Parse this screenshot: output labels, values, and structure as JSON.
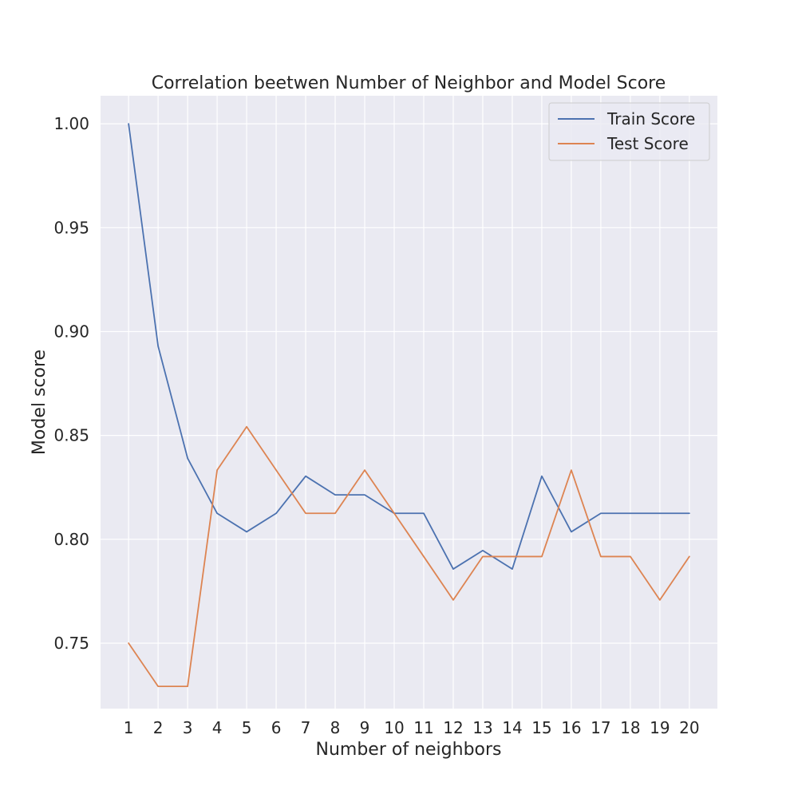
{
  "chart_data": {
    "type": "line",
    "title": "Correlation beetwen Number of Neighbor and Model Score",
    "xlabel": "Number of neighbors",
    "ylabel": "Model score",
    "x": [
      1,
      2,
      3,
      4,
      5,
      6,
      7,
      8,
      9,
      10,
      11,
      12,
      13,
      14,
      15,
      16,
      17,
      18,
      19,
      20
    ],
    "xlim": [
      0.05,
      20.95
    ],
    "ylim": [
      0.7185,
      1.0135
    ],
    "yticks": [
      0.75,
      0.8,
      0.85,
      0.9,
      0.95,
      1.0
    ],
    "ytick_labels": [
      "0.75",
      "0.80",
      "0.85",
      "0.90",
      "0.95",
      "1.00"
    ],
    "xtick_labels": [
      "1",
      "2",
      "3",
      "4",
      "5",
      "6",
      "7",
      "8",
      "9",
      "10",
      "11",
      "12",
      "13",
      "14",
      "15",
      "16",
      "17",
      "18",
      "19",
      "20"
    ],
    "grid": true,
    "legend_position": "top-right",
    "series": [
      {
        "name": "Train Score",
        "color": "#4c72b0",
        "values": [
          1.0,
          0.893,
          0.839,
          0.8125,
          0.8036,
          0.8125,
          0.8304,
          0.8214,
          0.8214,
          0.8125,
          0.8125,
          0.7857,
          0.7946,
          0.7857,
          0.8304,
          0.8036,
          0.8125,
          0.8125,
          0.8125,
          0.8125
        ]
      },
      {
        "name": "Test Score",
        "color": "#dd8452",
        "values": [
          0.75,
          0.7292,
          0.7292,
          0.8333,
          0.8542,
          0.8333,
          0.8125,
          0.8125,
          0.8333,
          0.8125,
          0.7917,
          0.7708,
          0.7917,
          0.7917,
          0.7917,
          0.8333,
          0.7917,
          0.7917,
          0.7708,
          0.7917
        ]
      }
    ]
  }
}
